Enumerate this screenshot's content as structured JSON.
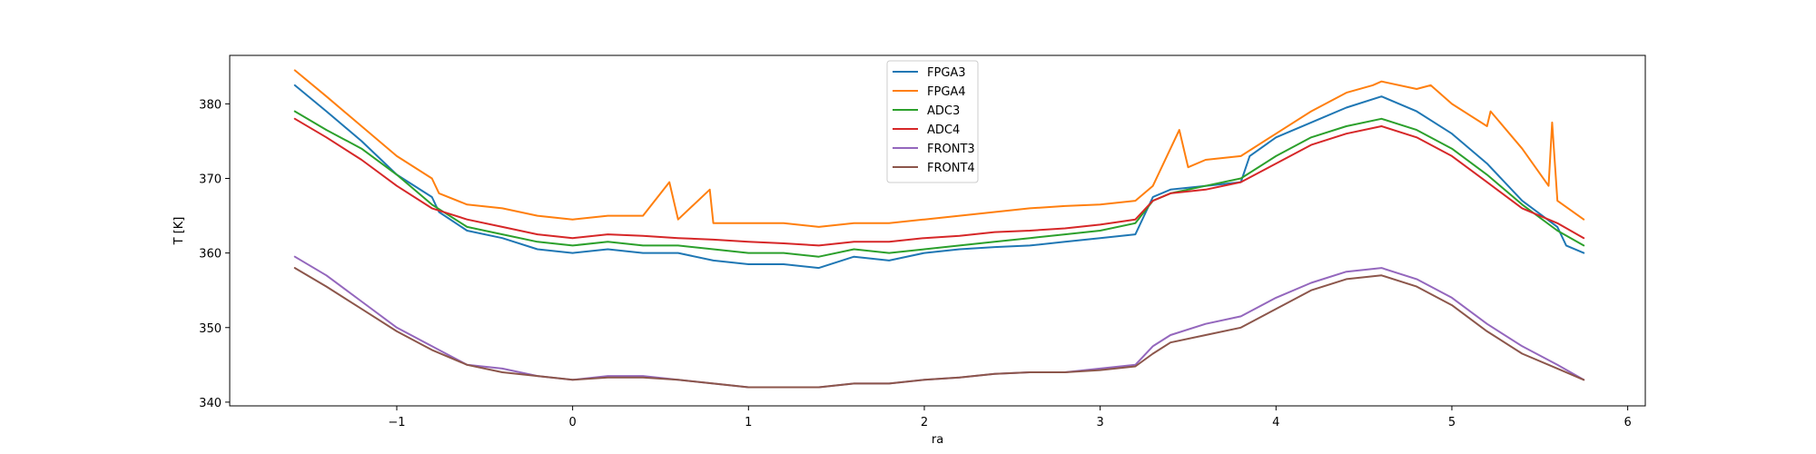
{
  "chart_data": {
    "type": "line",
    "title": "",
    "xlabel": "ra",
    "ylabel": "T [K]",
    "xlim": [
      -1.95,
      6.1
    ],
    "ylim": [
      339.5,
      386.5
    ],
    "xticks": [
      -1,
      0,
      1,
      2,
      3,
      4,
      5,
      6
    ],
    "xtick_labels": [
      "−1",
      "0",
      "1",
      "2",
      "3",
      "4",
      "5",
      "6"
    ],
    "yticks": [
      340,
      350,
      360,
      370,
      380
    ],
    "ytick_labels": [
      "340",
      "350",
      "360",
      "370",
      "380"
    ],
    "grid": false,
    "legend_position": "top-center",
    "series": [
      {
        "name": "FPGA3",
        "color": "#1f77b4",
        "x": [
          -1.58,
          -1.4,
          -1.2,
          -1.0,
          -0.8,
          -0.76,
          -0.6,
          -0.4,
          -0.2,
          0.0,
          0.2,
          0.4,
          0.6,
          0.8,
          1.0,
          1.2,
          1.4,
          1.6,
          1.8,
          2.0,
          2.2,
          2.4,
          2.6,
          2.8,
          3.0,
          3.2,
          3.3,
          3.4,
          3.6,
          3.8,
          3.85,
          4.0,
          4.2,
          4.4,
          4.6,
          4.8,
          5.0,
          5.2,
          5.4,
          5.6,
          5.65,
          5.75
        ],
        "y": [
          382.5,
          379.0,
          375.0,
          370.5,
          367.5,
          365.5,
          363.0,
          362.0,
          360.5,
          360.0,
          360.5,
          360.0,
          360.0,
          359.0,
          358.5,
          358.5,
          358.0,
          359.5,
          359.0,
          360.0,
          360.5,
          360.8,
          361.0,
          361.5,
          362.0,
          362.5,
          367.5,
          368.5,
          369.0,
          369.5,
          373.0,
          375.5,
          377.5,
          379.5,
          381.0,
          379.0,
          376.0,
          372.0,
          367.0,
          363.5,
          361.0,
          360.0
        ]
      },
      {
        "name": "FPGA4",
        "color": "#ff7f0e",
        "x": [
          -1.58,
          -1.4,
          -1.2,
          -1.0,
          -0.8,
          -0.76,
          -0.6,
          -0.4,
          -0.2,
          0.0,
          0.2,
          0.4,
          0.55,
          0.6,
          0.78,
          0.8,
          1.0,
          1.2,
          1.4,
          1.6,
          1.8,
          2.0,
          2.2,
          2.4,
          2.6,
          2.8,
          3.0,
          3.2,
          3.3,
          3.45,
          3.5,
          3.6,
          3.8,
          4.0,
          4.2,
          4.4,
          4.55,
          4.6,
          4.8,
          4.88,
          5.0,
          5.2,
          5.22,
          5.4,
          5.55,
          5.57,
          5.6,
          5.75
        ],
        "y": [
          384.5,
          381.0,
          377.0,
          373.0,
          370.0,
          368.0,
          366.5,
          366.0,
          365.0,
          364.5,
          365.0,
          365.0,
          369.5,
          364.5,
          368.5,
          364.0,
          364.0,
          364.0,
          363.5,
          364.0,
          364.0,
          364.5,
          365.0,
          365.5,
          366.0,
          366.3,
          366.5,
          367.0,
          369.0,
          376.5,
          371.5,
          372.5,
          373.0,
          376.0,
          379.0,
          381.5,
          382.5,
          383.0,
          382.0,
          382.5,
          380.0,
          377.0,
          379.0,
          374.0,
          369.0,
          377.5,
          367.0,
          364.5
        ]
      },
      {
        "name": "ADC3",
        "color": "#2ca02c",
        "x": [
          -1.58,
          -1.4,
          -1.2,
          -1.0,
          -0.8,
          -0.6,
          -0.4,
          -0.2,
          0.0,
          0.2,
          0.4,
          0.6,
          0.8,
          1.0,
          1.2,
          1.4,
          1.6,
          1.8,
          2.0,
          2.2,
          2.4,
          2.6,
          2.8,
          3.0,
          3.2,
          3.3,
          3.4,
          3.6,
          3.8,
          4.0,
          4.2,
          4.4,
          4.6,
          4.8,
          5.0,
          5.2,
          5.4,
          5.6,
          5.75
        ],
        "y": [
          379.0,
          376.5,
          374.0,
          370.5,
          366.5,
          363.5,
          362.5,
          361.5,
          361.0,
          361.5,
          361.0,
          361.0,
          360.5,
          360.0,
          360.0,
          359.5,
          360.5,
          360.0,
          360.5,
          361.0,
          361.5,
          362.0,
          362.5,
          363.0,
          364.0,
          367.0,
          368.0,
          369.0,
          370.0,
          373.0,
          375.5,
          377.0,
          378.0,
          376.5,
          374.0,
          370.5,
          366.5,
          363.0,
          361.0
        ]
      },
      {
        "name": "ADC4",
        "color": "#d62728",
        "x": [
          -1.58,
          -1.4,
          -1.2,
          -1.0,
          -0.8,
          -0.6,
          -0.4,
          -0.2,
          0.0,
          0.2,
          0.4,
          0.6,
          0.8,
          1.0,
          1.2,
          1.4,
          1.6,
          1.8,
          2.0,
          2.2,
          2.4,
          2.6,
          2.8,
          3.0,
          3.2,
          3.3,
          3.4,
          3.6,
          3.8,
          4.0,
          4.2,
          4.4,
          4.6,
          4.8,
          5.0,
          5.2,
          5.4,
          5.6,
          5.75
        ],
        "y": [
          378.0,
          375.5,
          372.5,
          369.0,
          366.0,
          364.5,
          363.5,
          362.5,
          362.0,
          362.5,
          362.3,
          362.0,
          361.8,
          361.5,
          361.3,
          361.0,
          361.5,
          361.5,
          362.0,
          362.3,
          362.8,
          363.0,
          363.3,
          363.8,
          364.5,
          367.0,
          368.0,
          368.5,
          369.5,
          372.0,
          374.5,
          376.0,
          377.0,
          375.5,
          373.0,
          369.5,
          366.0,
          364.0,
          362.0
        ]
      },
      {
        "name": "FRONT3",
        "color": "#9467bd",
        "x": [
          -1.58,
          -1.4,
          -1.2,
          -1.0,
          -0.8,
          -0.6,
          -0.4,
          -0.2,
          0.0,
          0.2,
          0.4,
          0.6,
          0.8,
          1.0,
          1.2,
          1.4,
          1.6,
          1.8,
          2.0,
          2.2,
          2.4,
          2.6,
          2.8,
          3.0,
          3.2,
          3.3,
          3.4,
          3.6,
          3.8,
          4.0,
          4.2,
          4.4,
          4.6,
          4.8,
          5.0,
          5.2,
          5.4,
          5.6,
          5.75
        ],
        "y": [
          359.5,
          357.0,
          353.5,
          350.0,
          347.5,
          345.0,
          344.5,
          343.5,
          343.0,
          343.5,
          343.5,
          343.0,
          342.5,
          342.0,
          342.0,
          342.0,
          342.5,
          342.5,
          343.0,
          343.3,
          343.8,
          344.0,
          344.0,
          344.5,
          345.0,
          347.5,
          349.0,
          350.5,
          351.5,
          354.0,
          356.0,
          357.5,
          358.0,
          356.5,
          354.0,
          350.5,
          347.5,
          345.0,
          343.0
        ]
      },
      {
        "name": "FRONT4",
        "color": "#8c564b",
        "x": [
          -1.58,
          -1.4,
          -1.2,
          -1.0,
          -0.8,
          -0.6,
          -0.4,
          -0.2,
          0.0,
          0.2,
          0.4,
          0.6,
          0.8,
          1.0,
          1.2,
          1.4,
          1.6,
          1.8,
          2.0,
          2.2,
          2.4,
          2.6,
          2.8,
          3.0,
          3.2,
          3.3,
          3.4,
          3.6,
          3.8,
          4.0,
          4.2,
          4.4,
          4.6,
          4.8,
          5.0,
          5.2,
          5.4,
          5.6,
          5.75
        ],
        "y": [
          358.0,
          355.5,
          352.5,
          349.5,
          347.0,
          345.0,
          344.0,
          343.5,
          343.0,
          343.3,
          343.3,
          343.0,
          342.5,
          342.0,
          342.0,
          342.0,
          342.5,
          342.5,
          343.0,
          343.3,
          343.8,
          344.0,
          344.0,
          344.3,
          344.8,
          346.5,
          348.0,
          349.0,
          350.0,
          352.5,
          355.0,
          356.5,
          357.0,
          355.5,
          353.0,
          349.5,
          346.5,
          344.5,
          343.0
        ]
      }
    ]
  }
}
